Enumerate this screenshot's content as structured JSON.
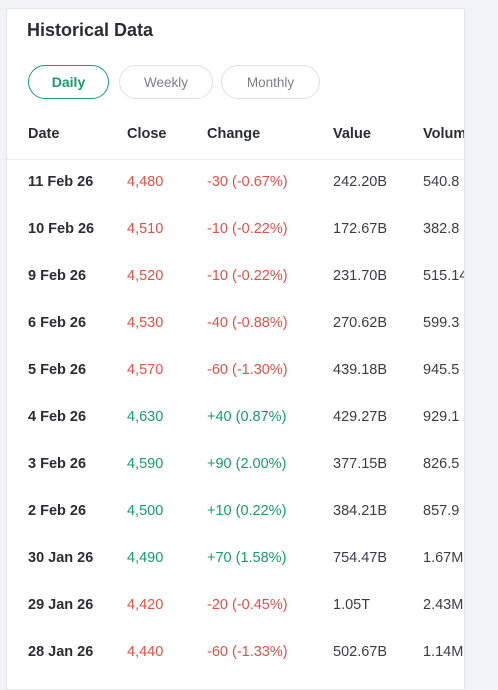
{
  "header": {
    "title": "Historical Data"
  },
  "tabs": [
    {
      "label": "Daily",
      "active": true
    },
    {
      "label": "Weekly",
      "active": false
    },
    {
      "label": "Monthly",
      "active": false
    }
  ],
  "table": {
    "columns": [
      "Date",
      "Close",
      "Change",
      "Value",
      "Volum"
    ],
    "rows": [
      {
        "date": "11 Feb 26",
        "close": "4,480",
        "change": "-30 (-0.67%)",
        "value": "242.20B",
        "volume": "540.8",
        "direction": "down"
      },
      {
        "date": "10 Feb 26",
        "close": "4,510",
        "change": "-10 (-0.22%)",
        "value": "172.67B",
        "volume": "382.8",
        "direction": "down"
      },
      {
        "date": "9 Feb 26",
        "close": "4,520",
        "change": "-10 (-0.22%)",
        "value": "231.70B",
        "volume": "515.14",
        "direction": "down"
      },
      {
        "date": "6 Feb 26",
        "close": "4,530",
        "change": "-40 (-0.88%)",
        "value": "270.62B",
        "volume": "599.3",
        "direction": "down"
      },
      {
        "date": "5 Feb 26",
        "close": "4,570",
        "change": "-60 (-1.30%)",
        "value": "439.18B",
        "volume": "945.5",
        "direction": "down"
      },
      {
        "date": "4 Feb 26",
        "close": "4,630",
        "change": "+40 (0.87%)",
        "value": "429.27B",
        "volume": "929.1",
        "direction": "up"
      },
      {
        "date": "3 Feb 26",
        "close": "4,590",
        "change": "+90 (2.00%)",
        "value": "377.15B",
        "volume": "826.5",
        "direction": "up"
      },
      {
        "date": "2 Feb 26",
        "close": "4,500",
        "change": "+10 (0.22%)",
        "value": "384.21B",
        "volume": "857.9",
        "direction": "up"
      },
      {
        "date": "30 Jan 26",
        "close": "4,490",
        "change": "+70 (1.58%)",
        "value": "754.47B",
        "volume": "1.67M",
        "direction": "up"
      },
      {
        "date": "29 Jan 26",
        "close": "4,420",
        "change": "-20 (-0.45%)",
        "value": "1.05T",
        "volume": "2.43M",
        "direction": "down"
      },
      {
        "date": "28 Jan 26",
        "close": "4,440",
        "change": "-60 (-1.33%)",
        "value": "502.67B",
        "volume": "1.14M",
        "direction": "down"
      }
    ]
  },
  "colors": {
    "accent": "#1a9b68",
    "positive": "#1a9b68",
    "negative": "#e0524a",
    "text": "#2a2d33"
  }
}
